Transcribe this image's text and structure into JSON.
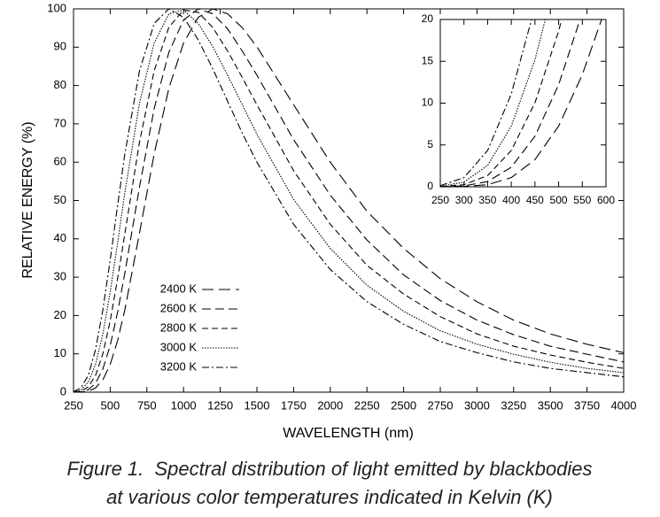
{
  "chart_data": {
    "type": "line",
    "xlabel": "WAVELENGTH (nm)",
    "ylabel": "RELATIVE ENERGY (%)",
    "x": [
      250,
      300,
      350,
      400,
      450,
      500,
      550,
      600,
      700,
      800,
      900,
      1000,
      1100,
      1200,
      1300,
      1400,
      1500,
      1750,
      2000,
      2250,
      2500,
      2750,
      3000,
      3250,
      3500,
      3750,
      4000
    ],
    "xlim": [
      250,
      4000
    ],
    "xticks": [
      250,
      500,
      750,
      1000,
      1250,
      1500,
      1750,
      2000,
      2250,
      2500,
      2750,
      3000,
      3250,
      3500,
      3750,
      4000
    ],
    "ylim": [
      0,
      100
    ],
    "yticks": [
      0,
      10,
      20,
      30,
      40,
      50,
      60,
      70,
      80,
      90,
      100
    ],
    "legend": "lower left",
    "series": [
      {
        "name": "2400 K",
        "color": "#000000",
        "dash": "13,6",
        "values": [
          0.0014,
          0.032,
          0.25,
          1.1,
          3.25,
          7.25,
          13.4,
          21.5,
          41.6,
          62.2,
          79.3,
          91.1,
          97.8,
          100.0,
          98.7,
          95.1,
          90.1,
          75.0,
          60.0,
          47.2,
          37.5,
          29.6,
          23.6,
          18.8,
          15.2,
          12.5,
          10.3
        ]
      },
      {
        "name": "2600 K",
        "color": "#000000",
        "dash": "10,5",
        "values": [
          0.0061,
          0.098,
          0.63,
          2.34,
          6.05,
          12.2,
          20.8,
          31.1,
          53.6,
          74.0,
          88.7,
          97.1,
          100.0,
          98.7,
          94.8,
          89.0,
          82.7,
          65.9,
          51.4,
          39.7,
          30.6,
          23.9,
          18.8,
          15.0,
          12.0,
          9.9,
          7.9
        ]
      },
      {
        "name": "2800 K",
        "color": "#000000",
        "dash": "7,4",
        "values": [
          0.02,
          0.25,
          1.35,
          4.34,
          10.05,
          18.6,
          29.5,
          41.4,
          65.3,
          83.9,
          95.2,
          99.7,
          99.1,
          95.1,
          89.0,
          82.1,
          75.0,
          57.8,
          43.8,
          33.1,
          25.6,
          19.7,
          15.2,
          12.0,
          9.7,
          7.8,
          6.2
        ]
      },
      {
        "name": "3000 K",
        "color": "#000000",
        "dash": "1.5,1.5",
        "values": [
          0.057,
          0.56,
          2.56,
          7.25,
          15.2,
          26.2,
          38.8,
          52.1,
          75.5,
          91.1,
          98.7,
          99.7,
          96.2,
          90.1,
          82.7,
          75.0,
          67.3,
          50.3,
          37.5,
          27.9,
          21.1,
          16.0,
          12.5,
          9.9,
          7.8,
          6.2,
          5.1
        ]
      },
      {
        "name": "3200 K",
        "color": "#000000",
        "dash": "8,3,2,3",
        "values": [
          0.138,
          1.1,
          4.34,
          11.1,
          21.5,
          34.5,
          48.6,
          62.2,
          83.9,
          96.2,
          100.0,
          97.8,
          91.9,
          84.3,
          75.9,
          67.6,
          60.0,
          43.8,
          32.0,
          23.6,
          17.7,
          13.2,
          10.3,
          7.9,
          6.2,
          5.1,
          4.0
        ]
      }
    ],
    "inset": {
      "xlim": [
        250,
        600
      ],
      "xticks": [
        250,
        300,
        350,
        400,
        450,
        500,
        550,
        600
      ],
      "ylim": [
        0,
        20
      ],
      "yticks": [
        0,
        5,
        10,
        15,
        20
      ]
    }
  },
  "caption": [
    "Figure 1.  Spectral distribution of light emitted by blackbodies",
    "at various color temperatures indicated in Kelvin (K)"
  ]
}
